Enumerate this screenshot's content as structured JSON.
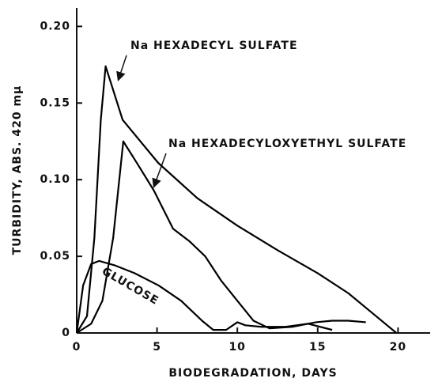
{
  "chart_data": {
    "type": "line",
    "x_label": "BIODEGRADATION, DAYS",
    "y_label": "TURBIDITY, ABS. 420 mμ",
    "xlim": [
      0,
      22
    ],
    "ylim": [
      0,
      0.21
    ],
    "xticks": [
      0,
      5,
      10,
      15,
      20
    ],
    "yticks": [
      0,
      0.05,
      {
        "value": 0.1,
        "label": "0.10"
      },
      0.15,
      {
        "value": 0.2,
        "label": "0.20"
      }
    ],
    "series": [
      {
        "name": "Na HEXADECYL SULFATE",
        "color": "#000000",
        "x": [
          0,
          0.64,
          1.1,
          1.5,
          1.8,
          2.86,
          5.07,
          7.5,
          10,
          12.5,
          15,
          16.9,
          18.4,
          19.9
        ],
        "values": [
          0,
          0.011,
          0.062,
          0.139,
          0.174,
          0.139,
          0.111,
          0.088,
          0.07,
          0.054,
          0.039,
          0.026,
          0.013,
          0
        ]
      },
      {
        "name": "Na HEXADECYLOXYETHYL SULFATE",
        "color": "#000000",
        "x": [
          0,
          0.9,
          1.6,
          2.27,
          2.9,
          3.8,
          4.8,
          6,
          7,
          8,
          9,
          10,
          11,
          12,
          13.4,
          14.9,
          15.9,
          16.9,
          18
        ],
        "values": [
          0,
          0.006,
          0.021,
          0.062,
          0.125,
          0.11,
          0.093,
          0.068,
          0.06,
          0.05,
          0.034,
          0.021,
          0.008,
          0.003,
          0.004,
          0.007,
          0.008,
          0.008,
          0.007
        ]
      },
      {
        "name": "GLUCOSE",
        "color": "#000000",
        "x": [
          0,
          0.4,
          0.9,
          1.4,
          2.4,
          3.6,
          5.1,
          6.5,
          7.8,
          8.5,
          9.3,
          10,
          10.5,
          11.5,
          13,
          14.4,
          15.9
        ],
        "values": [
          0,
          0.031,
          0.045,
          0.047,
          0.044,
          0.039,
          0.031,
          0.021,
          0.008,
          0.002,
          0.002,
          0.007,
          0.005,
          0.004,
          0.004,
          0.006,
          0.002
        ]
      }
    ]
  }
}
